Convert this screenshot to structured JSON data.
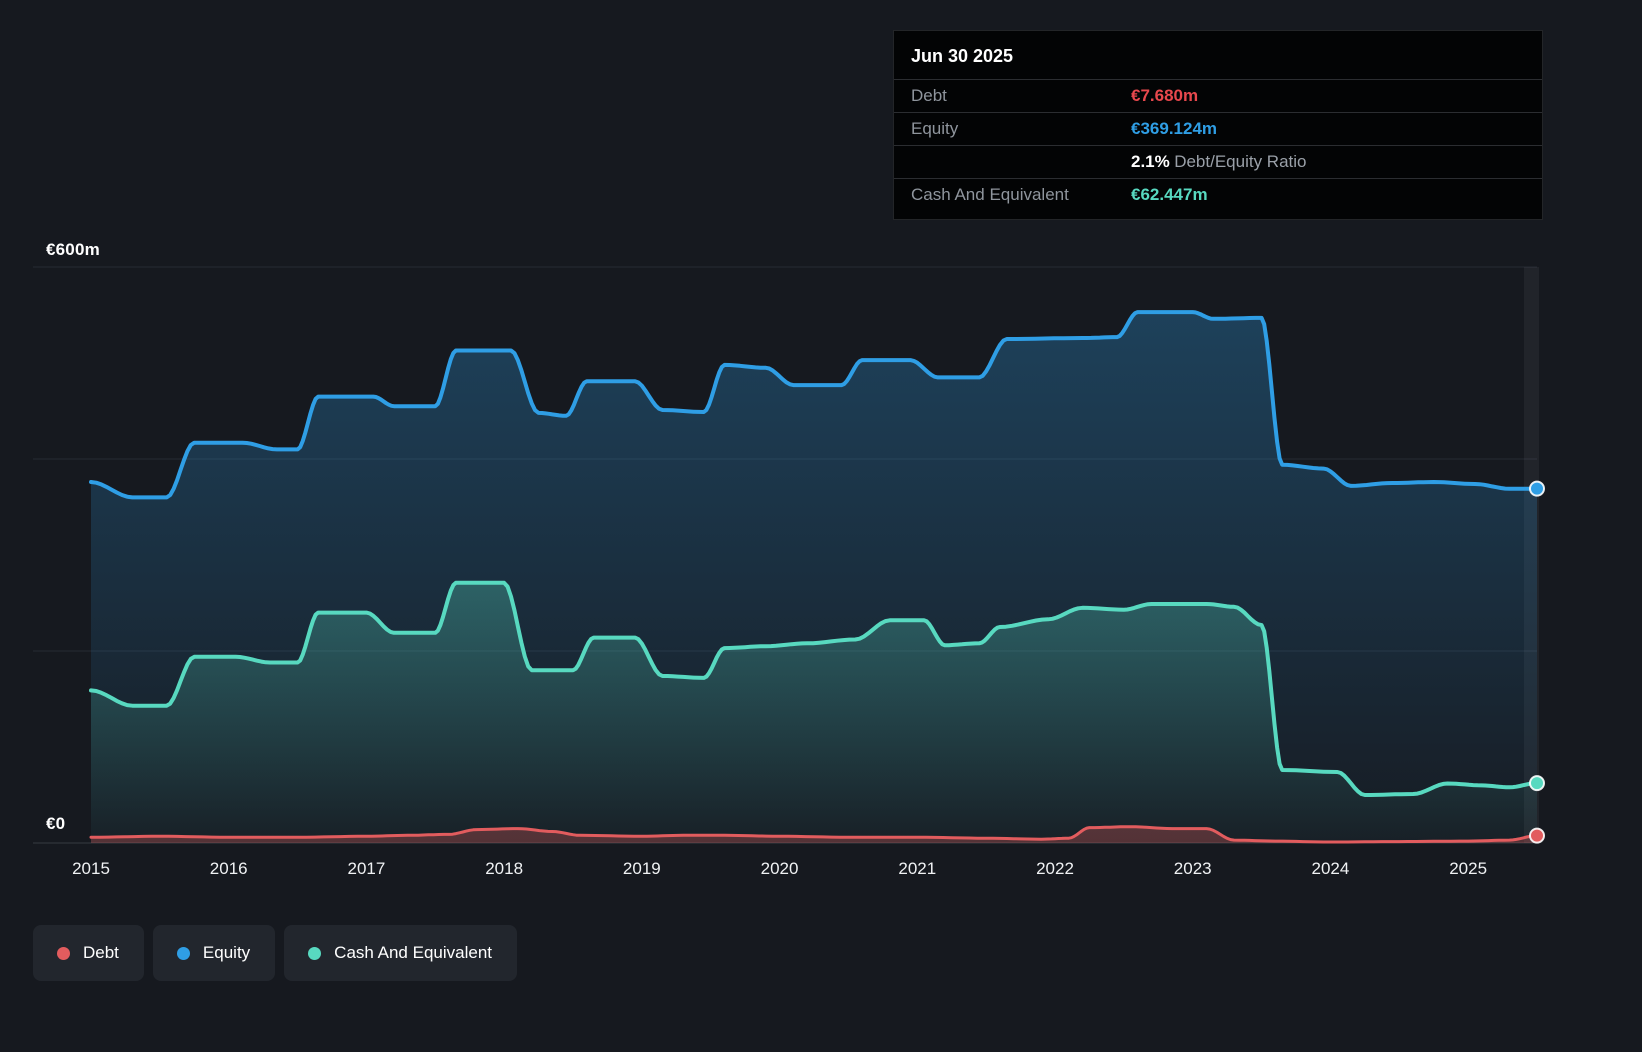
{
  "colors": {
    "background": "#16191f",
    "grid": "#262b33",
    "axis_line": "#353a42",
    "debt": "#e25c5e",
    "equity": "#2f9ee5",
    "cash": "#58d9c0",
    "debt_value": "#e8484d"
  },
  "tooltip": {
    "date": "Jun 30 2025",
    "debt": {
      "label": "Debt",
      "value": "€7.680m",
      "color": "#e8484d"
    },
    "equity": {
      "label": "Equity",
      "value": "€369.124m",
      "color": "#2f9ee5"
    },
    "ratio": {
      "value": "2.1%",
      "label": "Debt/Equity Ratio"
    },
    "cash": {
      "label": "Cash And Equivalent",
      "value": "€62.447m",
      "color": "#58d9c0"
    }
  },
  "axis": {
    "y_top": "€600m",
    "y_zero": "€0",
    "x_labels": [
      "2015",
      "2016",
      "2017",
      "2018",
      "2019",
      "2020",
      "2021",
      "2022",
      "2023",
      "2024",
      "2025"
    ]
  },
  "legend": {
    "items": [
      {
        "label": "Debt",
        "color": "#e25c5e"
      },
      {
        "label": "Equity",
        "color": "#2f9ee5"
      },
      {
        "label": "Cash And Equivalent",
        "color": "#58d9c0"
      }
    ]
  },
  "chart_data": {
    "type": "area",
    "title": "",
    "xlabel": "",
    "ylabel": "",
    "y_unit": "€m",
    "x_range": [
      2015,
      2025.5
    ],
    "ylim": [
      0,
      600
    ],
    "gridlines": [
      0,
      200,
      400,
      600
    ],
    "x_ticks": [
      2015,
      2016,
      2017,
      2018,
      2019,
      2020,
      2021,
      2022,
      2023,
      2024,
      2025
    ],
    "legend_position": "bottom-left",
    "series": [
      {
        "name": "Equity",
        "color": "#2f9ee5",
        "fill": "gradient",
        "stroke_width": 4,
        "points": [
          [
            2015,
            376
          ],
          [
            2015.3,
            360
          ],
          [
            2015.55,
            360
          ],
          [
            2015.75,
            417
          ],
          [
            2016.1,
            417
          ],
          [
            2016.35,
            410
          ],
          [
            2016.5,
            410
          ],
          [
            2016.65,
            465
          ],
          [
            2017.05,
            465
          ],
          [
            2017.2,
            455
          ],
          [
            2017.5,
            455
          ],
          [
            2017.65,
            513
          ],
          [
            2018.05,
            513
          ],
          [
            2018.25,
            448
          ],
          [
            2018.45,
            445
          ],
          [
            2018.6,
            481
          ],
          [
            2018.95,
            481
          ],
          [
            2019.15,
            451
          ],
          [
            2019.45,
            449
          ],
          [
            2019.6,
            498
          ],
          [
            2019.9,
            495
          ],
          [
            2020.1,
            477
          ],
          [
            2020.45,
            477
          ],
          [
            2020.6,
            503
          ],
          [
            2020.95,
            503
          ],
          [
            2021.15,
            485
          ],
          [
            2021.45,
            485
          ],
          [
            2021.65,
            525
          ],
          [
            2022.2,
            526
          ],
          [
            2022.45,
            527
          ],
          [
            2022.6,
            553
          ],
          [
            2023,
            553
          ],
          [
            2023.15,
            546
          ],
          [
            2023.5,
            547
          ],
          [
            2023.65,
            394
          ],
          [
            2023.95,
            390
          ],
          [
            2024.15,
            372
          ],
          [
            2024.45,
            375
          ],
          [
            2024.75,
            376
          ],
          [
            2025.05,
            374
          ],
          [
            2025.3,
            369
          ],
          [
            2025.5,
            369.124
          ]
        ]
      },
      {
        "name": "Cash And Equivalent",
        "color": "#58d9c0",
        "fill": "gradient",
        "stroke_width": 4,
        "points": [
          [
            2015,
            159
          ],
          [
            2015.3,
            143
          ],
          [
            2015.55,
            143
          ],
          [
            2015.75,
            194
          ],
          [
            2016.05,
            194
          ],
          [
            2016.3,
            188
          ],
          [
            2016.5,
            188
          ],
          [
            2016.65,
            240
          ],
          [
            2017,
            240
          ],
          [
            2017.2,
            219
          ],
          [
            2017.5,
            219
          ],
          [
            2017.65,
            271
          ],
          [
            2018,
            271
          ],
          [
            2018.2,
            180
          ],
          [
            2018.5,
            180
          ],
          [
            2018.65,
            214
          ],
          [
            2018.95,
            214
          ],
          [
            2019.15,
            174
          ],
          [
            2019.45,
            172
          ],
          [
            2019.6,
            203
          ],
          [
            2019.9,
            205
          ],
          [
            2020.2,
            208
          ],
          [
            2020.55,
            212
          ],
          [
            2020.8,
            232
          ],
          [
            2021.05,
            232
          ],
          [
            2021.2,
            206
          ],
          [
            2021.45,
            208
          ],
          [
            2021.6,
            225
          ],
          [
            2021.95,
            233
          ],
          [
            2022.2,
            245
          ],
          [
            2022.5,
            243
          ],
          [
            2022.7,
            249
          ],
          [
            2023.1,
            249
          ],
          [
            2023.3,
            246
          ],
          [
            2023.5,
            227
          ],
          [
            2023.65,
            76
          ],
          [
            2024.05,
            74
          ],
          [
            2024.25,
            50
          ],
          [
            2024.6,
            51
          ],
          [
            2024.85,
            62
          ],
          [
            2025.1,
            60
          ],
          [
            2025.3,
            58
          ],
          [
            2025.5,
            62.447
          ]
        ]
      },
      {
        "name": "Debt",
        "color": "#e25c5e",
        "fill": "solid",
        "stroke_width": 3,
        "points": [
          [
            2015,
            6
          ],
          [
            2015.5,
            7
          ],
          [
            2016,
            6
          ],
          [
            2016.5,
            6
          ],
          [
            2017,
            7
          ],
          [
            2017.3,
            8
          ],
          [
            2017.6,
            9
          ],
          [
            2017.8,
            14
          ],
          [
            2018.1,
            15
          ],
          [
            2018.35,
            12
          ],
          [
            2018.55,
            8
          ],
          [
            2019,
            7
          ],
          [
            2019.3,
            8
          ],
          [
            2019.6,
            8
          ],
          [
            2020,
            7
          ],
          [
            2020.5,
            6
          ],
          [
            2021,
            6
          ],
          [
            2021.5,
            5
          ],
          [
            2021.9,
            4
          ],
          [
            2022.1,
            5
          ],
          [
            2022.25,
            16
          ],
          [
            2022.55,
            17
          ],
          [
            2022.85,
            15
          ],
          [
            2023.1,
            15
          ],
          [
            2023.3,
            3
          ],
          [
            2023.6,
            2
          ],
          [
            2024,
            1
          ],
          [
            2024.5,
            1.5
          ],
          [
            2025,
            2
          ],
          [
            2025.3,
            3
          ],
          [
            2025.5,
            7.68
          ]
        ]
      }
    ]
  }
}
